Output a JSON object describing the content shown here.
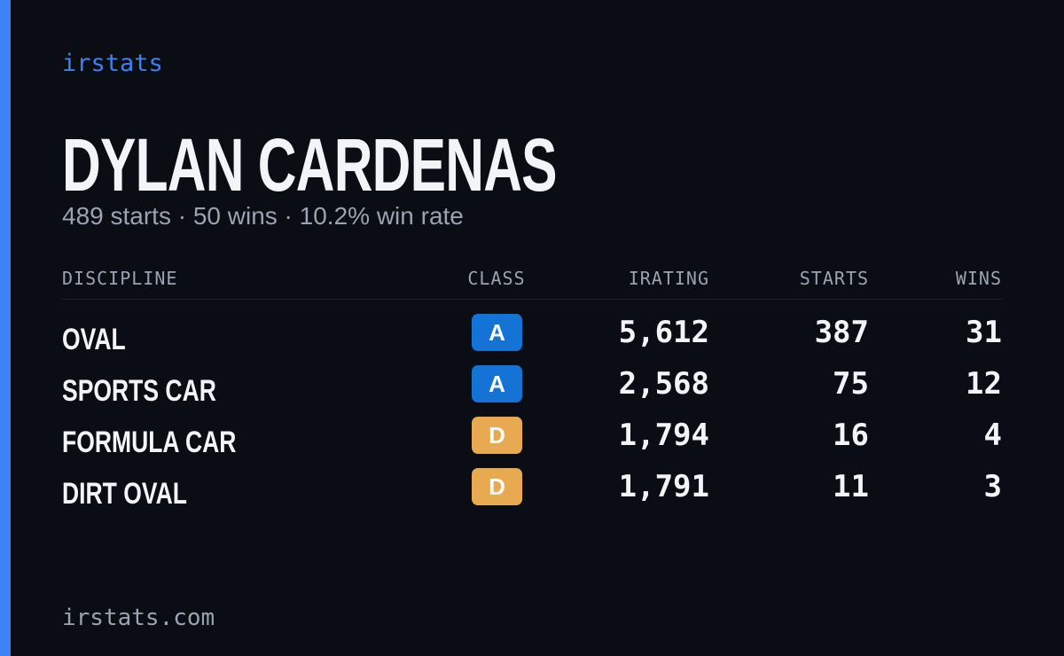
{
  "brand": "irstats",
  "header": {
    "title": "DYLAN CARDENAS",
    "subtitle": "489 starts · 50 wins · 10.2% win rate"
  },
  "table": {
    "headers": [
      "DISCIPLINE",
      "CLASS",
      "IRATING",
      "STARTS",
      "WINS"
    ],
    "rows": [
      {
        "discipline": "OVAL",
        "class": "A",
        "class_color": "#1673d6",
        "irating": "5,612",
        "starts": "387",
        "wins": "31"
      },
      {
        "discipline": "SPORTS CAR",
        "class": "A",
        "class_color": "#1673d6",
        "irating": "2,568",
        "starts": "75",
        "wins": "12"
      },
      {
        "discipline": "FORMULA CAR",
        "class": "D",
        "class_color": "#e8aa50",
        "irating": "1,794",
        "starts": "16",
        "wins": "4"
      },
      {
        "discipline": "DIRT OVAL",
        "class": "D",
        "class_color": "#e8aa50",
        "irating": "1,791",
        "starts": "11",
        "wins": "3"
      }
    ]
  },
  "footer": "irstats.com"
}
